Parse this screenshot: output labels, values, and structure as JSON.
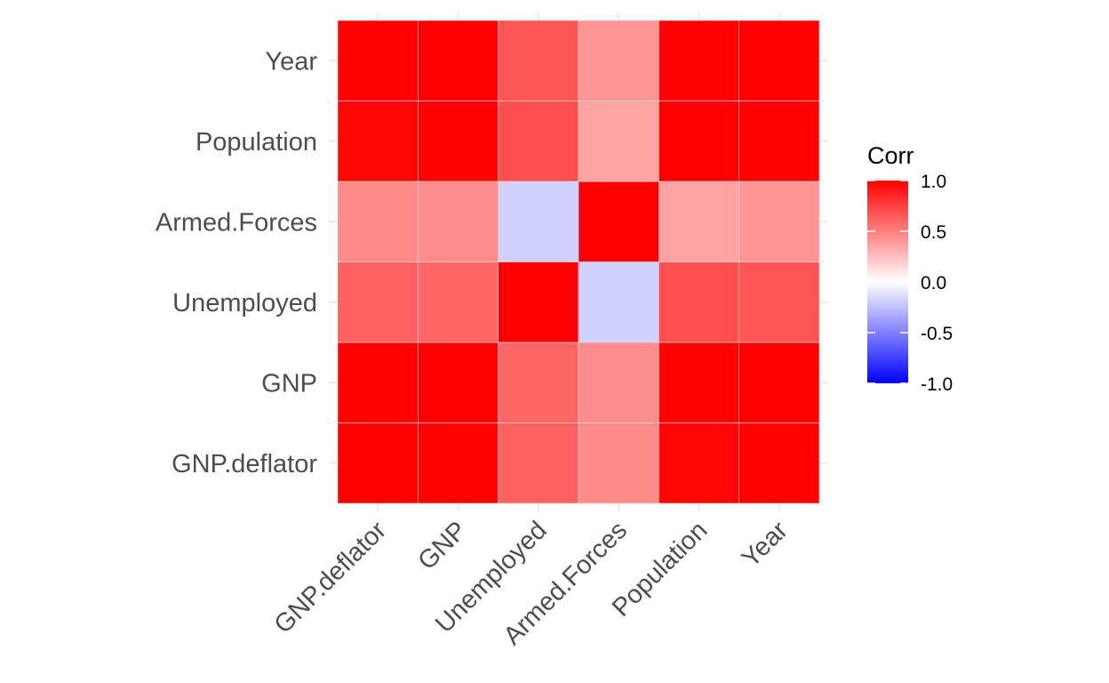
{
  "chart_data": {
    "type": "heatmap",
    "x_categories": [
      "GNP.deflator",
      "GNP",
      "Unemployed",
      "Armed.Forces",
      "Population",
      "Year"
    ],
    "y_categories": [
      "GNP.deflator",
      "GNP",
      "Unemployed",
      "Armed.Forces",
      "Population",
      "Year"
    ],
    "matrix": [
      [
        1.0,
        0.99,
        0.62,
        0.46,
        0.98,
        0.99
      ],
      [
        0.99,
        1.0,
        0.6,
        0.45,
        0.99,
        1.0
      ],
      [
        0.62,
        0.6,
        1.0,
        -0.18,
        0.69,
        0.67
      ],
      [
        0.46,
        0.45,
        -0.18,
        1.0,
        0.36,
        0.42
      ],
      [
        0.98,
        0.99,
        0.69,
        0.36,
        1.0,
        0.99
      ],
      [
        0.99,
        1.0,
        0.67,
        0.42,
        0.99,
        1.0
      ]
    ],
    "legend": {
      "title": "Corr",
      "ticks": [
        1.0,
        0.5,
        0.0,
        -0.5,
        -1.0
      ],
      "tick_labels": [
        "1.0",
        "0.5",
        "0.0",
        "-0.5",
        "-1.0"
      ],
      "placement": "right"
    },
    "colors": {
      "high": "#FF0000",
      "mid": "#FFFFFF",
      "low": "#0000FF"
    },
    "range": [
      -1,
      1
    ],
    "grid": true
  }
}
